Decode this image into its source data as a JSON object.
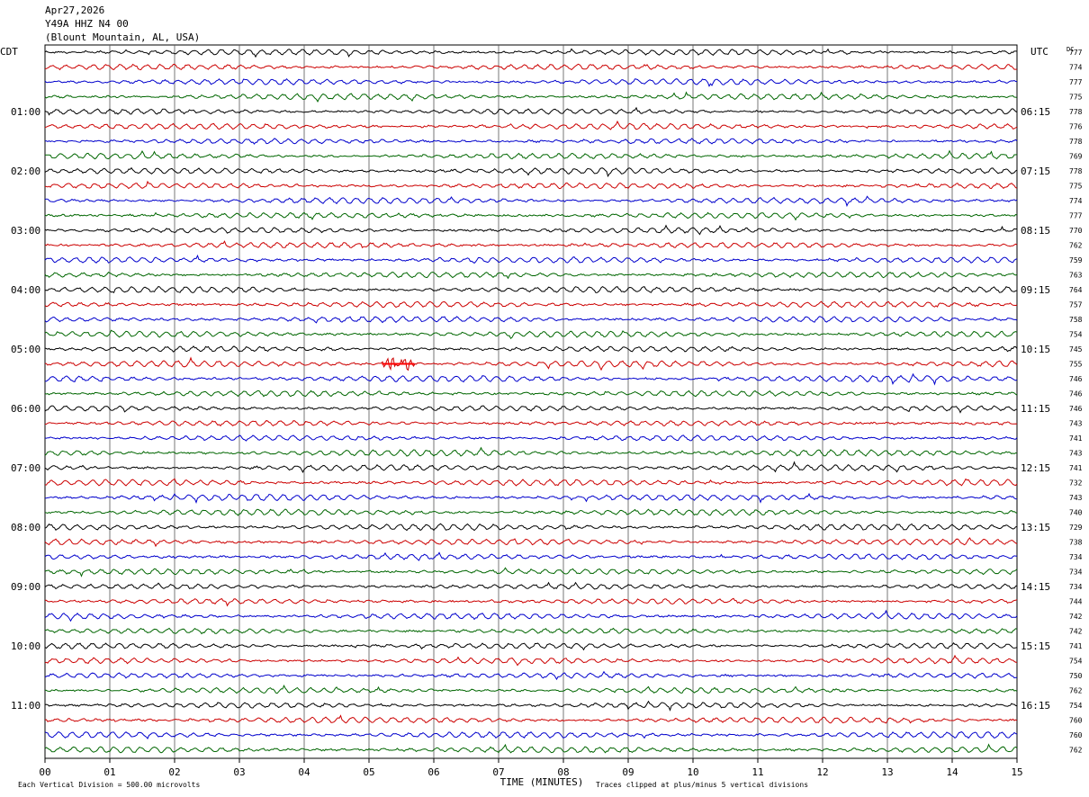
{
  "header": {
    "date": "Apr27,2026",
    "station": "Y49A HHZ N4 00",
    "location": "(Blount Mountain, AL, USA)"
  },
  "colors": {
    "trace_cycle": [
      "#000000",
      "#cc0000",
      "#0000cc",
      "#006600"
    ],
    "grid": "#000000",
    "event": "#ff0000"
  },
  "chart_data": {
    "type": "line",
    "title": "",
    "xlabel": "TIME (MINUTES)",
    "ylabel": "",
    "xlim": [
      0,
      15
    ],
    "x_ticks": [
      "00",
      "01",
      "02",
      "03",
      "04",
      "05",
      "06",
      "07",
      "08",
      "09",
      "10",
      "11",
      "12",
      "13",
      "14",
      "15"
    ],
    "left_axis_title": "CDT",
    "right_axis_title": "UTC",
    "dc_title": "DC",
    "rows_per_hour": 4,
    "row_minutes": 15,
    "left_time_labels": [
      "01:00",
      "02:00",
      "03:00",
      "04:00",
      "05:00",
      "06:00",
      "07:00",
      "08:00",
      "09:00",
      "10:00",
      "11:00"
    ],
    "right_time_labels": [
      "06:15",
      "07:15",
      "08:15",
      "09:15",
      "10:15",
      "11:15",
      "12:15",
      "13:15",
      "14:15",
      "15:15",
      "16:15"
    ],
    "dc_offsets": [
      "777",
      "774",
      "777",
      "775",
      "778",
      "776",
      "778",
      "769",
      "778",
      "775",
      "774",
      "777",
      "770",
      "762",
      "759",
      "763",
      "764",
      "757",
      "758",
      "754",
      "745",
      "755",
      "746",
      "746",
      "746",
      "743",
      "741",
      "743",
      "741",
      "732",
      "743",
      "740",
      "729",
      "738",
      "734",
      "734",
      "734",
      "744",
      "742",
      "742",
      "741",
      "754",
      "750",
      "762",
      "754",
      "760",
      "760",
      "762"
    ],
    "series_note_scale": "Each Vertical Division =  500.00 microvolts",
    "series_note_clip": "Traces clipped at plus/minus 5 vertical divisions",
    "events": [
      {
        "row": 21,
        "start_minute": 5.2,
        "end_minute": 5.7,
        "label": ""
      }
    ],
    "grid": true
  }
}
